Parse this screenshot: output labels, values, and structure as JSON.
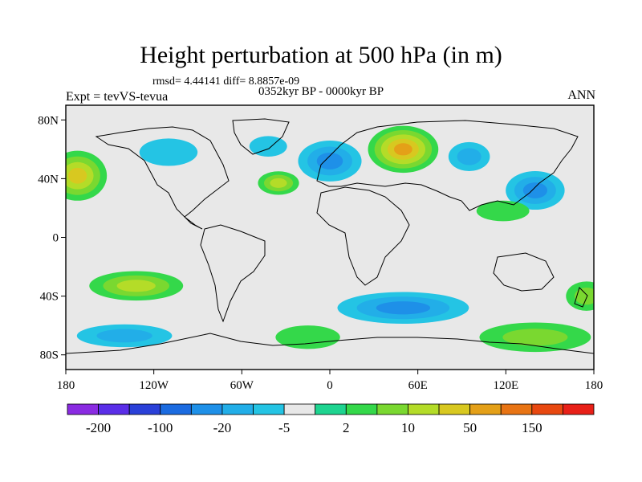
{
  "title": "Height perturbation at 500 hPa (in m)",
  "stats": "rmsd= 4.44141 diff= 8.8857e-09",
  "experiment": "Expt = tevVS-tevua",
  "period": "0352kyr BP - 0000kyr BP",
  "season": "ANN",
  "map": {
    "lat_ticks": [
      "80N",
      "40N",
      "0",
      "40S",
      "80S"
    ],
    "lon_ticks": [
      "180",
      "120W",
      "60W",
      "0",
      "60E",
      "120E",
      "180"
    ],
    "lat_values": [
      80,
      40,
      0,
      -40,
      -80
    ],
    "lon_values": [
      -180,
      -120,
      -60,
      0,
      60,
      120,
      180
    ],
    "background_color": "#e8e8e8"
  },
  "colorbar": {
    "labels": [
      "-200",
      "-100",
      "-20",
      "-5",
      "2",
      "10",
      "50",
      "150"
    ],
    "colors": [
      "#8a2be2",
      "#5a2ee8",
      "#2a40d8",
      "#1b6be0",
      "#1e90e8",
      "#22aee8",
      "#24c4e4",
      "#e8e8e8",
      "#1ed490",
      "#34d84a",
      "#7ad830",
      "#b4dc28",
      "#d8c820",
      "#e4a018",
      "#e87414",
      "#e84810",
      "#e82018"
    ]
  },
  "fields": [
    {
      "name": "pacific-north-high",
      "lon": -172,
      "lat": 42,
      "rx": 20,
      "ry": 17,
      "level": 4
    },
    {
      "name": "north-america-low",
      "lon": -110,
      "lat": 58,
      "rx": 34,
      "ry": 16,
      "level": -2
    },
    {
      "name": "greenland-low",
      "lon": -42,
      "lat": 62,
      "rx": 22,
      "ry": 12,
      "level": -2
    },
    {
      "name": "europe-low",
      "lon": 0,
      "lat": 52,
      "rx": 28,
      "ry": 18,
      "level": -4
    },
    {
      "name": "atlantic-high",
      "lon": -35,
      "lat": 37,
      "rx": 14,
      "ry": 8,
      "level": 3
    },
    {
      "name": "siberia-high",
      "lon": 50,
      "lat": 60,
      "rx": 24,
      "ry": 16,
      "level": 5
    },
    {
      "name": "central-asia-low",
      "lon": 95,
      "lat": 55,
      "rx": 20,
      "ry": 14,
      "level": -3
    },
    {
      "name": "nw-pacific-low",
      "lon": 140,
      "lat": 32,
      "rx": 26,
      "ry": 17,
      "level": -4
    },
    {
      "name": "east-asia-high",
      "lon": 118,
      "lat": 18,
      "rx": 18,
      "ry": 7,
      "level": 1
    },
    {
      "name": "south-pacific-high",
      "lon": -132,
      "lat": -33,
      "rx": 32,
      "ry": 10,
      "level": 3
    },
    {
      "name": "south-indian-low",
      "lon": 50,
      "lat": -48,
      "rx": 58,
      "ry": 14,
      "level": -4
    },
    {
      "name": "southern-ocean-low",
      "lon": -140,
      "lat": -67,
      "rx": 46,
      "ry": 11,
      "level": -3
    },
    {
      "name": "antarctic-high",
      "lon": -15,
      "lat": -68,
      "rx": 22,
      "ry": 8,
      "level": 1
    },
    {
      "name": "southeast-indian-high",
      "lon": 140,
      "lat": -68,
      "rx": 38,
      "ry": 10,
      "level": 2
    },
    {
      "name": "new-zealand-high",
      "lon": 175,
      "lat": -40,
      "rx": 14,
      "ry": 10,
      "level": 2
    }
  ]
}
